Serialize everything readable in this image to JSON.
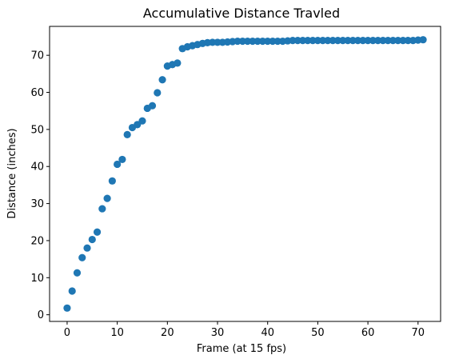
{
  "chart_data": {
    "type": "scatter",
    "title": "Accumulative Distance Travled",
    "xlabel": "Frame (at 15 fps)",
    "ylabel": "Distance (inches)",
    "xlim": [
      -3.5,
      74.5
    ],
    "ylim": [
      -1.8,
      77.8
    ],
    "xticks": [
      0,
      10,
      20,
      30,
      40,
      50,
      60,
      70
    ],
    "yticks": [
      0,
      10,
      20,
      30,
      40,
      50,
      60,
      70
    ],
    "grid": false,
    "marker_color": "#1f77b4",
    "series": [
      {
        "x": [
          0,
          1,
          2,
          3,
          4,
          5,
          6,
          7,
          8,
          9,
          10,
          11,
          12,
          13,
          14,
          15,
          16,
          17,
          18,
          19,
          20,
          21,
          22,
          23,
          24,
          25,
          26,
          27,
          28,
          29,
          30,
          31,
          32,
          33,
          34,
          35,
          36,
          37,
          38,
          39,
          40,
          41,
          42,
          43,
          44,
          45,
          46,
          47,
          48,
          49,
          50,
          51,
          52,
          53,
          54,
          55,
          56,
          57,
          58,
          59,
          60,
          61,
          62,
          63,
          64,
          65,
          66,
          67,
          68,
          69,
          70,
          71
        ],
        "y": [
          1.8,
          6.4,
          11.3,
          15.4,
          18.0,
          20.3,
          22.3,
          28.6,
          31.4,
          36.1,
          40.6,
          41.9,
          48.6,
          50.5,
          51.3,
          52.3,
          55.7,
          56.4,
          59.9,
          63.4,
          67.1,
          67.5,
          67.9,
          71.8,
          72.3,
          72.6,
          72.9,
          73.2,
          73.4,
          73.5,
          73.5,
          73.5,
          73.6,
          73.7,
          73.8,
          73.8,
          73.8,
          73.8,
          73.8,
          73.8,
          73.8,
          73.8,
          73.8,
          73.8,
          73.9,
          74.0,
          74.0,
          74.0,
          74.0,
          74.0,
          74.0,
          74.0,
          74.0,
          74.0,
          74.0,
          74.0,
          74.0,
          74.0,
          74.0,
          74.0,
          74.0,
          74.0,
          74.0,
          74.0,
          74.0,
          74.0,
          74.0,
          74.0,
          74.0,
          74.0,
          74.1,
          74.2
        ]
      }
    ]
  }
}
